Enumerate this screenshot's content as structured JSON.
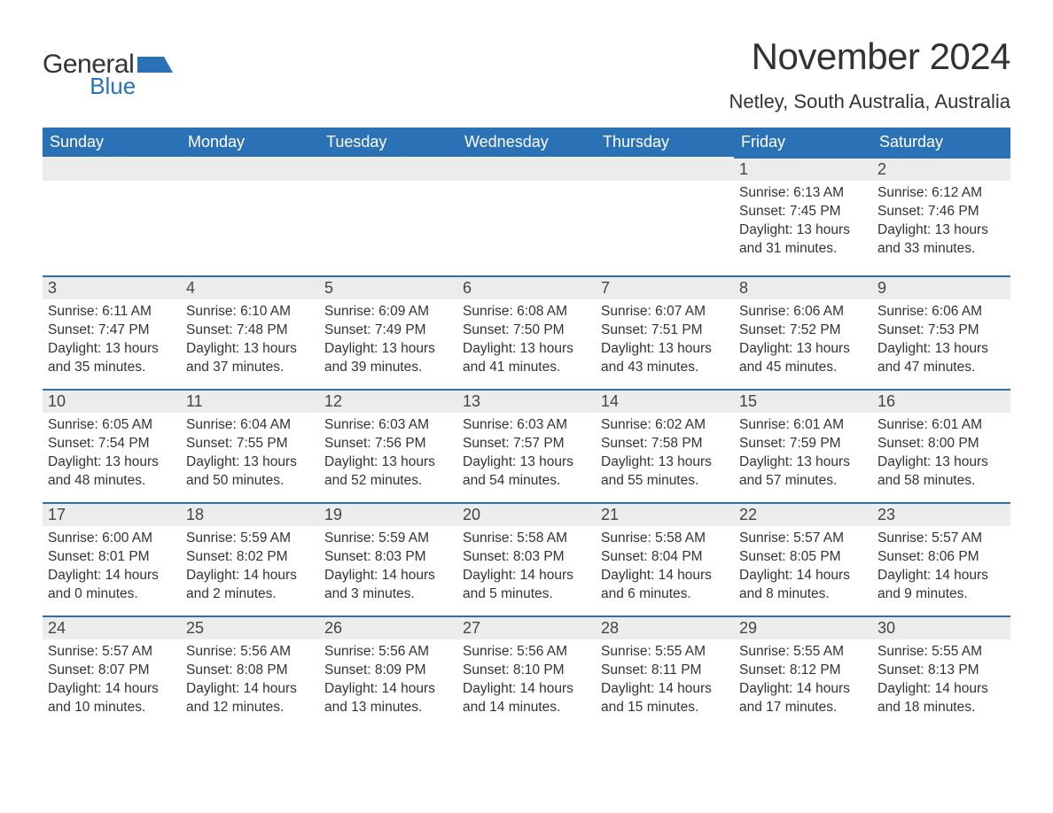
{
  "brand": {
    "general": "General",
    "blue": "Blue",
    "mark_color": "#2a72b5"
  },
  "title": "November 2024",
  "location": "Netley, South Australia, Australia",
  "colors": {
    "header_bg": "#2a72b5",
    "header_text": "#ffffff",
    "daynum_bg": "#ececec",
    "daynum_border": "#2a72b5",
    "body_text": "#333333",
    "page_bg": "#ffffff"
  },
  "typography": {
    "title_fontsize": 42,
    "location_fontsize": 22,
    "weekday_fontsize": 18,
    "daynum_fontsize": 18,
    "body_fontsize": 15.5,
    "font_family": "Arial"
  },
  "labels": {
    "sunrise": "Sunrise:",
    "sunset": "Sunset:",
    "daylight": "Daylight:"
  },
  "weekdays": [
    "Sunday",
    "Monday",
    "Tuesday",
    "Wednesday",
    "Thursday",
    "Friday",
    "Saturday"
  ],
  "weeks": [
    [
      null,
      null,
      null,
      null,
      null,
      {
        "n": "1",
        "sunrise": "6:13 AM",
        "sunset": "7:45 PM",
        "daylight": "13 hours and 31 minutes."
      },
      {
        "n": "2",
        "sunrise": "6:12 AM",
        "sunset": "7:46 PM",
        "daylight": "13 hours and 33 minutes."
      }
    ],
    [
      {
        "n": "3",
        "sunrise": "6:11 AM",
        "sunset": "7:47 PM",
        "daylight": "13 hours and 35 minutes."
      },
      {
        "n": "4",
        "sunrise": "6:10 AM",
        "sunset": "7:48 PM",
        "daylight": "13 hours and 37 minutes."
      },
      {
        "n": "5",
        "sunrise": "6:09 AM",
        "sunset": "7:49 PM",
        "daylight": "13 hours and 39 minutes."
      },
      {
        "n": "6",
        "sunrise": "6:08 AM",
        "sunset": "7:50 PM",
        "daylight": "13 hours and 41 minutes."
      },
      {
        "n": "7",
        "sunrise": "6:07 AM",
        "sunset": "7:51 PM",
        "daylight": "13 hours and 43 minutes."
      },
      {
        "n": "8",
        "sunrise": "6:06 AM",
        "sunset": "7:52 PM",
        "daylight": "13 hours and 45 minutes."
      },
      {
        "n": "9",
        "sunrise": "6:06 AM",
        "sunset": "7:53 PM",
        "daylight": "13 hours and 47 minutes."
      }
    ],
    [
      {
        "n": "10",
        "sunrise": "6:05 AM",
        "sunset": "7:54 PM",
        "daylight": "13 hours and 48 minutes."
      },
      {
        "n": "11",
        "sunrise": "6:04 AM",
        "sunset": "7:55 PM",
        "daylight": "13 hours and 50 minutes."
      },
      {
        "n": "12",
        "sunrise": "6:03 AM",
        "sunset": "7:56 PM",
        "daylight": "13 hours and 52 minutes."
      },
      {
        "n": "13",
        "sunrise": "6:03 AM",
        "sunset": "7:57 PM",
        "daylight": "13 hours and 54 minutes."
      },
      {
        "n": "14",
        "sunrise": "6:02 AM",
        "sunset": "7:58 PM",
        "daylight": "13 hours and 55 minutes."
      },
      {
        "n": "15",
        "sunrise": "6:01 AM",
        "sunset": "7:59 PM",
        "daylight": "13 hours and 57 minutes."
      },
      {
        "n": "16",
        "sunrise": "6:01 AM",
        "sunset": "8:00 PM",
        "daylight": "13 hours and 58 minutes."
      }
    ],
    [
      {
        "n": "17",
        "sunrise": "6:00 AM",
        "sunset": "8:01 PM",
        "daylight": "14 hours and 0 minutes."
      },
      {
        "n": "18",
        "sunrise": "5:59 AM",
        "sunset": "8:02 PM",
        "daylight": "14 hours and 2 minutes."
      },
      {
        "n": "19",
        "sunrise": "5:59 AM",
        "sunset": "8:03 PM",
        "daylight": "14 hours and 3 minutes."
      },
      {
        "n": "20",
        "sunrise": "5:58 AM",
        "sunset": "8:03 PM",
        "daylight": "14 hours and 5 minutes."
      },
      {
        "n": "21",
        "sunrise": "5:58 AM",
        "sunset": "8:04 PM",
        "daylight": "14 hours and 6 minutes."
      },
      {
        "n": "22",
        "sunrise": "5:57 AM",
        "sunset": "8:05 PM",
        "daylight": "14 hours and 8 minutes."
      },
      {
        "n": "23",
        "sunrise": "5:57 AM",
        "sunset": "8:06 PM",
        "daylight": "14 hours and 9 minutes."
      }
    ],
    [
      {
        "n": "24",
        "sunrise": "5:57 AM",
        "sunset": "8:07 PM",
        "daylight": "14 hours and 10 minutes."
      },
      {
        "n": "25",
        "sunrise": "5:56 AM",
        "sunset": "8:08 PM",
        "daylight": "14 hours and 12 minutes."
      },
      {
        "n": "26",
        "sunrise": "5:56 AM",
        "sunset": "8:09 PM",
        "daylight": "14 hours and 13 minutes."
      },
      {
        "n": "27",
        "sunrise": "5:56 AM",
        "sunset": "8:10 PM",
        "daylight": "14 hours and 14 minutes."
      },
      {
        "n": "28",
        "sunrise": "5:55 AM",
        "sunset": "8:11 PM",
        "daylight": "14 hours and 15 minutes."
      },
      {
        "n": "29",
        "sunrise": "5:55 AM",
        "sunset": "8:12 PM",
        "daylight": "14 hours and 17 minutes."
      },
      {
        "n": "30",
        "sunrise": "5:55 AM",
        "sunset": "8:13 PM",
        "daylight": "14 hours and 18 minutes."
      }
    ]
  ]
}
